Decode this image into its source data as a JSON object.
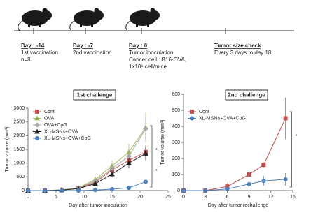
{
  "timeline": {
    "steps": [
      {
        "day": "Day : -14",
        "lines": [
          "1st vaccination",
          "n=8"
        ]
      },
      {
        "day": "Day : -7",
        "lines": [
          "2nd vaccination"
        ]
      },
      {
        "day": "Day : 0",
        "lines": [
          "Tumor inoculation",
          "Cancer cell : B16-OVA,",
          "1x10⁶ cell/mice"
        ]
      },
      {
        "day": "Tumor size check",
        "lines": [
          "Every 3 days to day 18"
        ]
      }
    ]
  },
  "chart_data": [
    {
      "type": "line",
      "title": "1st challenge",
      "x_label": "Day after tumor inoculation",
      "y_label": "Tumor volume (mm³)",
      "xlim": [
        0,
        25
      ],
      "xticks": [
        0,
        5,
        10,
        15,
        20,
        25
      ],
      "ylim": [
        0,
        3000
      ],
      "yticks": [
        0,
        500,
        1000,
        1500,
        2000,
        2500,
        3000
      ],
      "x": [
        0,
        3,
        6,
        9,
        12,
        15,
        18,
        21
      ],
      "series": [
        {
          "name": "Cont",
          "color": "#c0504d",
          "marker": "square",
          "values": [
            0,
            0,
            20,
            80,
            300,
            750,
            1100,
            1400
          ],
          "errors": [
            0,
            0,
            10,
            30,
            80,
            150,
            200,
            250
          ]
        },
        {
          "name": "OVA",
          "color": "#9bbb59",
          "marker": "triangle",
          "values": [
            0,
            0,
            30,
            100,
            400,
            900,
            1400,
            2300
          ],
          "errors": [
            0,
            0,
            15,
            40,
            100,
            200,
            300,
            550
          ]
        },
        {
          "name": "OVA+CpG",
          "color": "#a6a6a6",
          "marker": "diamond",
          "values": [
            0,
            0,
            25,
            90,
            350,
            800,
            1250,
            2250
          ],
          "errors": [
            0,
            0,
            10,
            30,
            90,
            180,
            250,
            400
          ]
        },
        {
          "name": "XL-MSNs+OVA",
          "color": "#222222",
          "marker": "triangle",
          "values": [
            0,
            0,
            20,
            70,
            250,
            600,
            1000,
            1350
          ],
          "errors": [
            0,
            0,
            10,
            25,
            70,
            120,
            180,
            250
          ]
        },
        {
          "name": "XL-MSNs+OVA+CpG",
          "color": "#4f81bd",
          "marker": "circle",
          "values": [
            0,
            0,
            0,
            0,
            20,
            50,
            100,
            320
          ],
          "errors": [
            0,
            0,
            0,
            0,
            10,
            20,
            40,
            80
          ]
        }
      ],
      "annotations": [
        "*",
        "*"
      ]
    },
    {
      "type": "line",
      "title": "2nd challenge",
      "x_label": "Day after tumor rechallenge",
      "y_label": "Tumor volume (mm³)",
      "xlim": [
        0,
        15
      ],
      "xticks": [
        0,
        3,
        6,
        9,
        12,
        15
      ],
      "ylim": [
        0,
        600
      ],
      "yticks": [
        0,
        100,
        200,
        300,
        400,
        500,
        600
      ],
      "x": [
        0,
        3,
        6,
        9,
        11,
        14
      ],
      "series": [
        {
          "name": "Cont",
          "color": "#c0504d",
          "marker": "square",
          "values": [
            0,
            0,
            25,
            100,
            160,
            450
          ],
          "errors": [
            0,
            0,
            20,
            20,
            15,
            130
          ]
        },
        {
          "name": "XL-MSNs+OVA+CpG",
          "color": "#4f81bd",
          "marker": "circle",
          "values": [
            0,
            0,
            10,
            40,
            60,
            70
          ],
          "errors": [
            0,
            0,
            10,
            20,
            30,
            40
          ]
        }
      ],
      "annotations": [
        "*"
      ]
    }
  ]
}
